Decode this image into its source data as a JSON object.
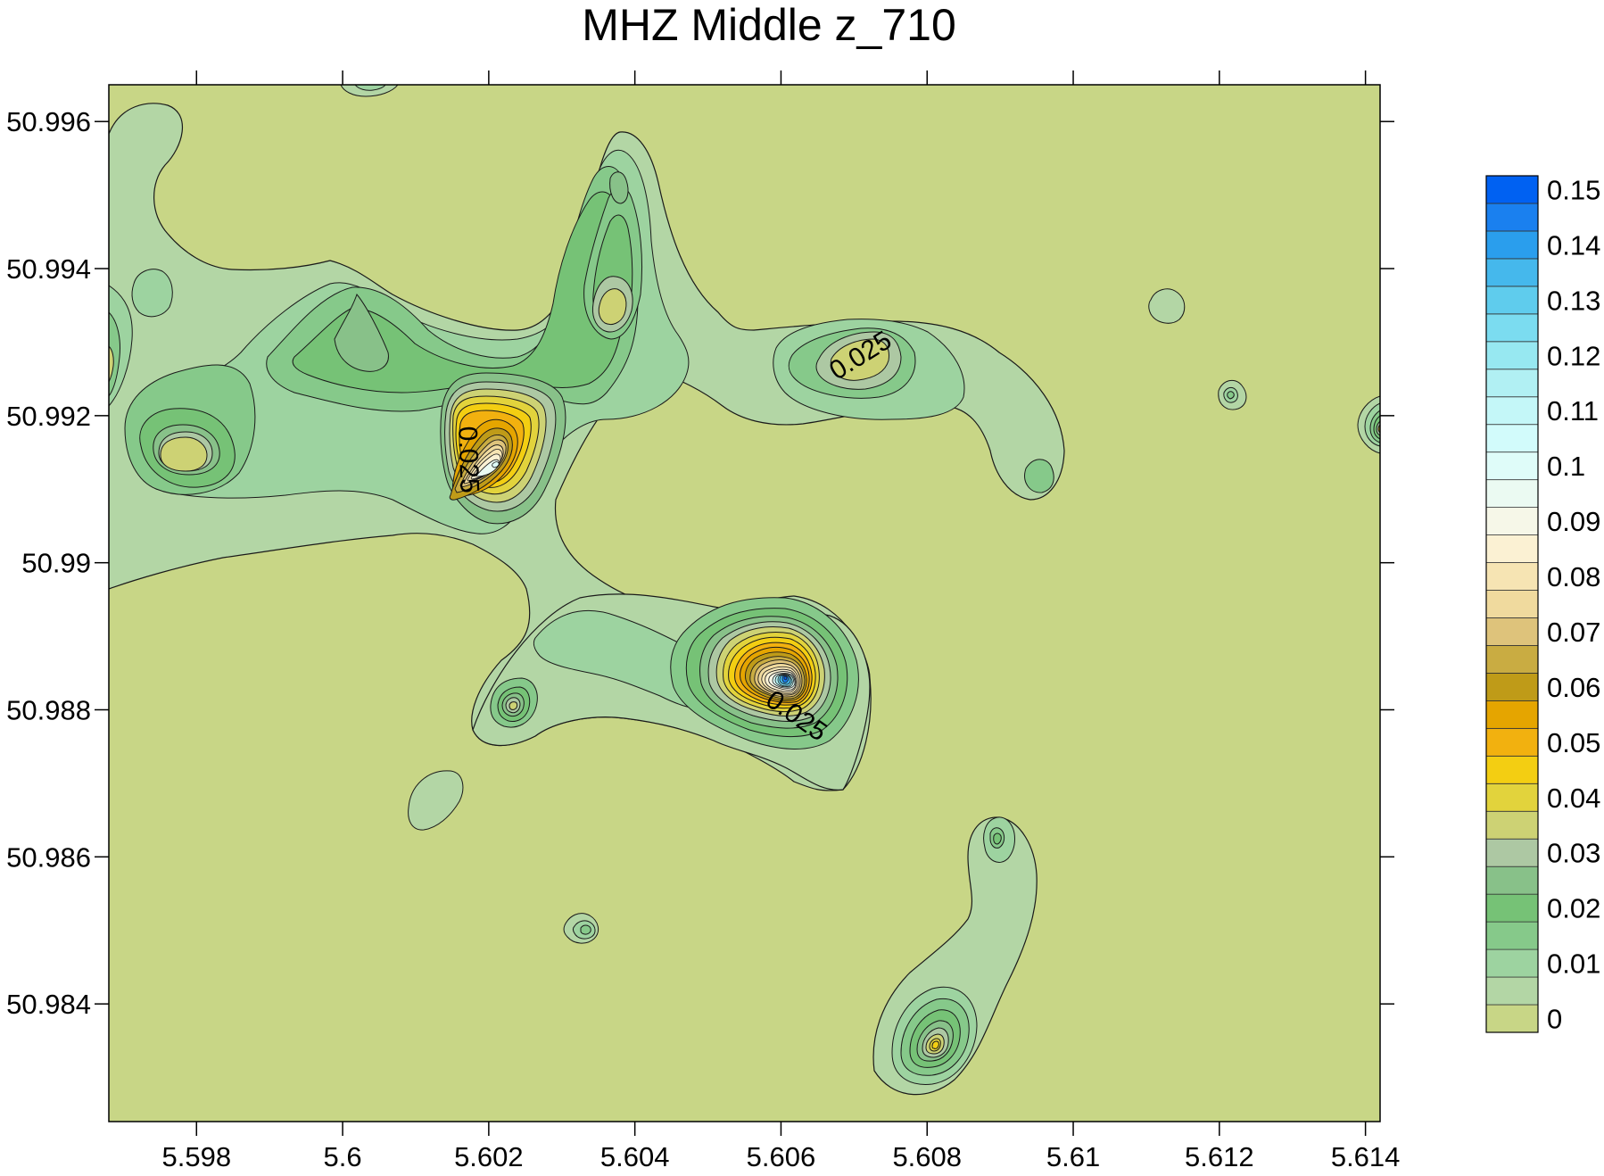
{
  "chart_data": {
    "type": "heatmap",
    "subtype": "filled-contour",
    "title": "MHZ Middle z_710",
    "xlabel": "",
    "ylabel": "",
    "xlim": [
      5.5968,
      5.6142
    ],
    "ylim": [
      50.9824,
      50.9965
    ],
    "x_ticks": [
      {
        "value": 5.598,
        "label": "5.598"
      },
      {
        "value": 5.6,
        "label": "5.6"
      },
      {
        "value": 5.602,
        "label": "5.602"
      },
      {
        "value": 5.604,
        "label": "5.604"
      },
      {
        "value": 5.606,
        "label": "5.606"
      },
      {
        "value": 5.608,
        "label": "5.608"
      },
      {
        "value": 5.61,
        "label": "5.61"
      },
      {
        "value": 5.612,
        "label": "5.612"
      },
      {
        "value": 5.614,
        "label": "5.614"
      }
    ],
    "y_ticks": [
      {
        "value": 50.996,
        "label": "50.996"
      },
      {
        "value": 50.994,
        "label": "50.994"
      },
      {
        "value": 50.992,
        "label": "50.992"
      },
      {
        "value": 50.99,
        "label": "50.99"
      },
      {
        "value": 50.988,
        "label": "50.988"
      },
      {
        "value": 50.986,
        "label": "50.986"
      },
      {
        "value": 50.984,
        "label": "50.984"
      }
    ],
    "contour_interval": 0.005,
    "levels": [
      0,
      0.005,
      0.01,
      0.015,
      0.02,
      0.025,
      0.03,
      0.035,
      0.04,
      0.045,
      0.05,
      0.055,
      0.06,
      0.065,
      0.07,
      0.075,
      0.08,
      0.085,
      0.09,
      0.095,
      0.1,
      0.105,
      0.11,
      0.115,
      0.12,
      0.125,
      0.13,
      0.135,
      0.14,
      0.145,
      0.15,
      0.155
    ],
    "colors": [
      "#c8d686",
      "#b3d6a5",
      "#9dd3a0",
      "#86c98a",
      "#76c276",
      "#88c189",
      "#adc8a3",
      "#cdd274",
      "#e2d33c",
      "#f3ce12",
      "#f2b10f",
      "#e5a500",
      "#bf9b18",
      "#c9ac42",
      "#dec37b",
      "#f0da9e",
      "#f6e4b3",
      "#fbf1d3",
      "#f6f7e8",
      "#ebfaf2",
      "#dffcf9",
      "#d2fbfb",
      "#c4f7f8",
      "#b1f0f3",
      "#97e8f1",
      "#7bdcf0",
      "#5fcced",
      "#45b8ec",
      "#2a9eed",
      "#1a80ef",
      "#0061f2"
    ],
    "colorbar": {
      "labels": [
        "0",
        "0.01",
        "0.02",
        "0.03",
        "0.04",
        "0.05",
        "0.06",
        "0.07",
        "0.08",
        "0.09",
        "0.1",
        "0.11",
        "0.12",
        "0.13",
        "0.14",
        "0.15"
      ],
      "placement": "right"
    },
    "contour_labels": [
      {
        "text": "0.025",
        "x": 5.6071,
        "y": 50.9928,
        "angle": -32
      },
      {
        "text": "0.025",
        "x": 5.6017,
        "y": 50.9914,
        "angle": 88
      },
      {
        "text": "0.025",
        "x": 5.6062,
        "y": 50.9879,
        "angle": 35
      }
    ],
    "features": [
      {
        "id": "plateau-nw",
        "x": 5.5982,
        "y": 50.9937,
        "peak": 0.012
      },
      {
        "id": "peak-nw",
        "x": 5.5981,
        "y": 50.9916,
        "peak": 0.036
      },
      {
        "id": "ridge-top",
        "x": 5.6002,
        "y": 50.9934,
        "peak": 0.022
      },
      {
        "id": "peak-top-center",
        "x": 5.6037,
        "y": 50.9946,
        "peak": 0.027
      },
      {
        "id": "peak-top-center-2",
        "x": 5.6036,
        "y": 50.9937,
        "peak": 0.034
      },
      {
        "id": "peak-main-north",
        "x": 5.6021,
        "y": 50.9914,
        "peak": 0.105
      },
      {
        "id": "peak-east-upper",
        "x": 5.6071,
        "y": 50.9927,
        "peak": 0.036
      },
      {
        "id": "tail-east-upper",
        "x": 5.6095,
        "y": 50.9911,
        "peak": 0.02
      },
      {
        "id": "peak-main-south",
        "x": 5.6061,
        "y": 50.9884,
        "peak": 0.155
      },
      {
        "id": "peak-small-left",
        "x": 5.6022,
        "y": 50.9881,
        "peak": 0.032
      },
      {
        "id": "peak-south-east",
        "x": 5.608,
        "y": 50.9839,
        "peak": 0.045
      },
      {
        "id": "spot-south-east-2",
        "x": 5.6089,
        "y": 50.9863,
        "peak": 0.018
      },
      {
        "id": "spot-small-center",
        "x": 5.6033,
        "y": 50.985,
        "peak": 0.018
      },
      {
        "id": "spot-lonely-left",
        "x": 5.6013,
        "y": 50.9869,
        "peak": 0.008
      },
      {
        "id": "spot-far-east-1",
        "x": 5.6112,
        "y": 50.9937,
        "peak": 0.008
      },
      {
        "id": "spot-far-east-2",
        "x": 5.6121,
        "y": 50.9923,
        "peak": 0.015
      },
      {
        "id": "spot-edge-east",
        "x": 5.6143,
        "y": 50.9917,
        "peak": 0.04
      },
      {
        "id": "spot-edge-top",
        "x": 5.6002,
        "y": 50.9967,
        "peak": 0.012
      }
    ]
  }
}
